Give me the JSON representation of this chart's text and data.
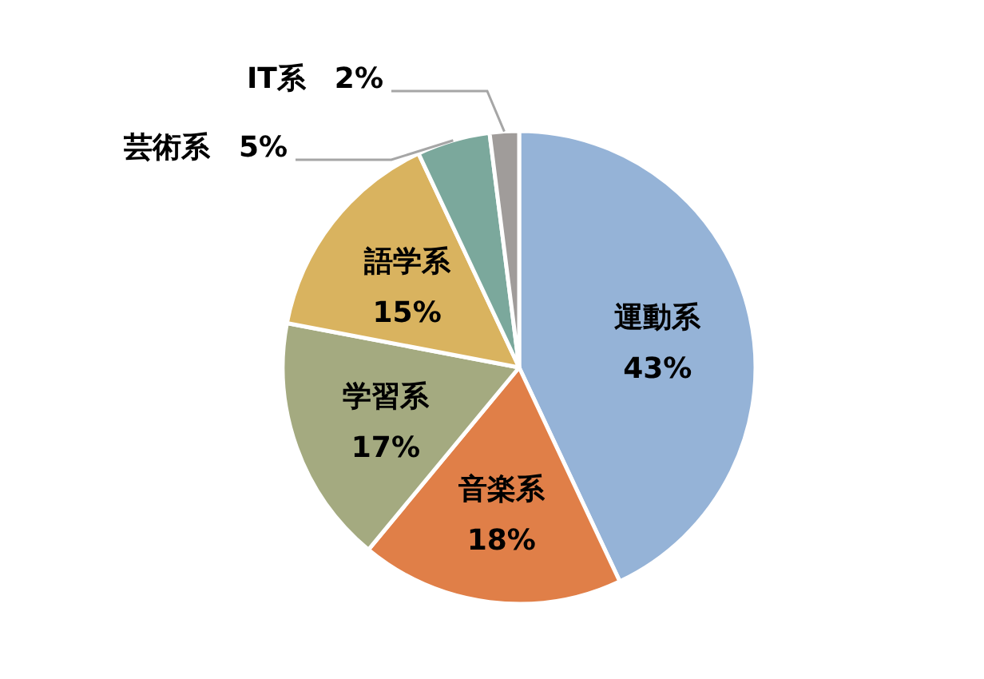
{
  "chart_data": {
    "type": "pie",
    "categories": [
      "運動系",
      "音楽系",
      "学習系",
      "語学系",
      "芸術系",
      "IT系"
    ],
    "values": [
      43,
      18,
      17,
      15,
      5,
      2
    ],
    "value_labels": [
      "43%",
      "18%",
      "17%",
      "15%",
      "5%",
      "2%"
    ],
    "colors": [
      "#95b3d7",
      "#e07f48",
      "#a4aa80",
      "#d9b35f",
      "#7ba89c",
      "#a09c9a"
    ]
  }
}
